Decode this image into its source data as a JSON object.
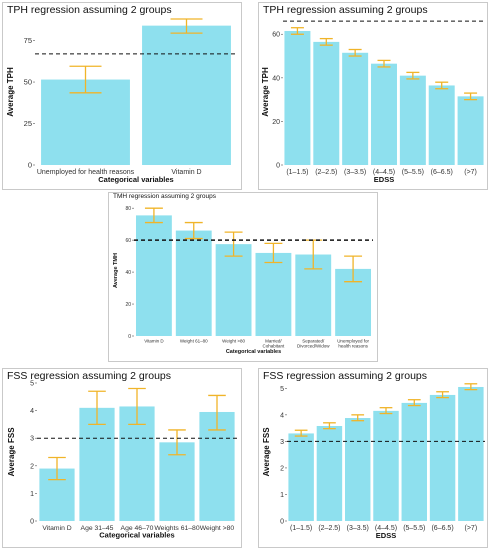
{
  "chart_data": [
    {
      "type": "bar",
      "title": "TPH regression assuming 2 groups",
      "xlabel": "Categorical variables",
      "ylabel": "Average TPH",
      "categories": [
        "Unemployed for health reasons",
        "Vitamin D"
      ],
      "values": [
        51.5,
        84
      ],
      "error_low": [
        43.5,
        79.5
      ],
      "error_high": [
        59.5,
        88
      ],
      "reference_line": 67,
      "ylim": [
        0,
        88
      ],
      "yticks": [
        0,
        25,
        50,
        75
      ],
      "colors": {
        "bar": "#8ee0ee",
        "error": "#f0b429",
        "reference": "#111111"
      }
    },
    {
      "type": "bar",
      "title": "TPH regression assuming 2 groups",
      "xlabel": "EDSS",
      "ylabel": "Average TPH",
      "categories": [
        "(1–1.5)",
        "(2–2.5)",
        "(3–3.5)",
        "(4–4.5)",
        "(5–5.5)",
        "(6–6.5)",
        "(>7)"
      ],
      "values": [
        61.5,
        56.5,
        51.5,
        46.5,
        41,
        36.5,
        31.5
      ],
      "error_low": [
        60,
        55,
        50,
        45,
        39.5,
        35,
        30
      ],
      "error_high": [
        63,
        58,
        53,
        48,
        42.5,
        38,
        33
      ],
      "reference_line": 66,
      "ylim": [
        0,
        67
      ],
      "yticks": [
        0,
        20,
        40,
        60
      ],
      "colors": {
        "bar": "#8ee0ee",
        "error": "#f0b429",
        "reference": "#111111"
      }
    },
    {
      "type": "bar",
      "title": "TMH regression assuming 2 groups",
      "xlabel": "Categorical variables",
      "ylabel": "Average TMH",
      "categories": [
        "Vitamin D",
        "Weight 61–80",
        "Weight >80",
        "Married/ Cohabitant",
        "Separated/ Divorced/Widow",
        "Unemployed for health reasons"
      ],
      "values": [
        75.5,
        66,
        57.5,
        52,
        51,
        42
      ],
      "error_low": [
        71,
        61,
        50,
        46,
        42,
        34
      ],
      "error_high": [
        80,
        71,
        65,
        58,
        60,
        50
      ],
      "reference_line": 60,
      "ylim": [
        0,
        82
      ],
      "yticks": [
        0,
        20,
        40,
        60,
        80
      ],
      "colors": {
        "bar": "#8ee0ee",
        "error": "#f0b429",
        "reference": "#111111"
      }
    },
    {
      "type": "bar",
      "title": "FSS regression assuming 2 groups",
      "xlabel": "Categorical variables",
      "ylabel": "Average FSS",
      "categories": [
        "Vitamin D",
        "Age 31–45",
        "Age 46–70",
        "Weights 61–80",
        "Weight >80"
      ],
      "values": [
        1.9,
        4.1,
        4.15,
        2.85,
        3.95
      ],
      "error_low": [
        1.5,
        3.5,
        3.5,
        2.4,
        3.3
      ],
      "error_high": [
        2.3,
        4.7,
        4.8,
        3.3,
        4.55
      ],
      "reference_line": 3.0,
      "ylim": [
        0,
        5
      ],
      "yticks": [
        0,
        1,
        2,
        3,
        4,
        5
      ],
      "colors": {
        "bar": "#8ee0ee",
        "error": "#f0b429",
        "reference": "#111111"
      }
    },
    {
      "type": "bar",
      "title": "FSS regression assuming 2 groups",
      "xlabel": "EDSS",
      "ylabel": "Average FSS",
      "categories": [
        "(1–1.5)",
        "(2–2.5)",
        "(3–3.5)",
        "(4–4.5)",
        "(5–5.5)",
        "(6–6.5)",
        "(>7)"
      ],
      "values": [
        3.3,
        3.58,
        3.88,
        4.15,
        4.45,
        4.75,
        5.05
      ],
      "error_low": [
        3.2,
        3.48,
        3.78,
        4.05,
        4.35,
        4.65,
        4.95
      ],
      "error_high": [
        3.42,
        3.7,
        4.0,
        4.27,
        4.57,
        4.87,
        5.17
      ],
      "reference_line": 3.0,
      "ylim": [
        0,
        5.2
      ],
      "yticks": [
        0,
        1,
        2,
        3,
        4,
        5
      ],
      "colors": {
        "bar": "#8ee0ee",
        "error": "#f0b429",
        "reference": "#111111"
      }
    }
  ]
}
